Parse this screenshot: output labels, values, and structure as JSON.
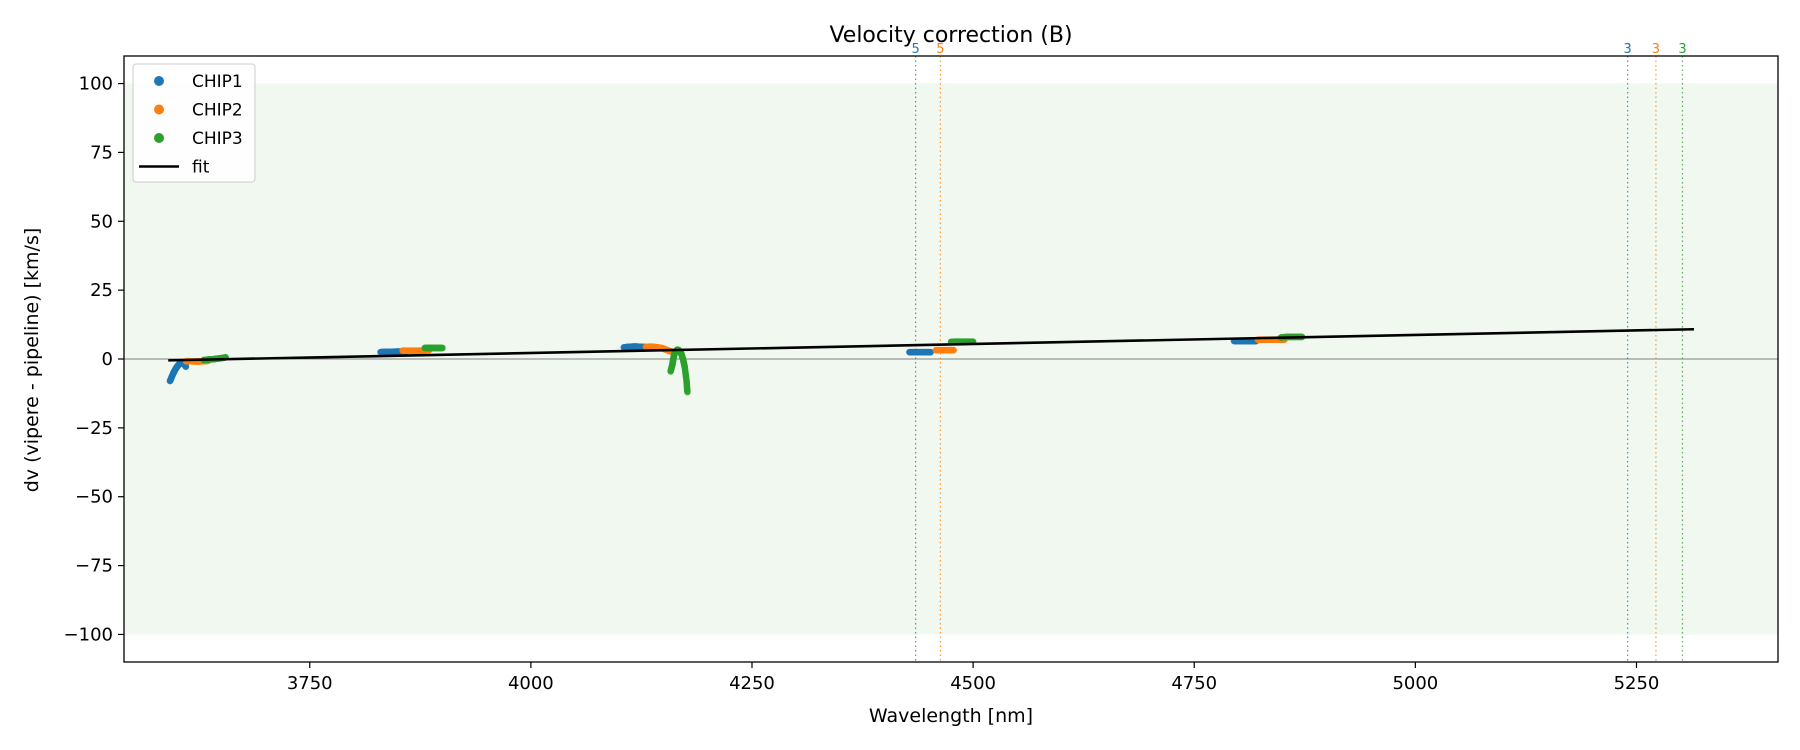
{
  "chart_data": {
    "type": "scatter",
    "title": "Velocity correction (B)",
    "xlabel": "Wavelength [nm]",
    "ylabel": "dv (vipere - pipeline) [km/s]",
    "xlim": [
      3540,
      5410
    ],
    "ylim": [
      -110,
      110
    ],
    "xticks": [
      3750,
      4000,
      4250,
      4500,
      4750,
      5000,
      5250
    ],
    "yticks": [
      100,
      75,
      50,
      25,
      0,
      -25,
      -50,
      -75,
      -100
    ],
    "ytick_labels": [
      "100",
      "75",
      "50",
      "25",
      "0",
      "−25",
      "−50",
      "−75",
      "−100"
    ],
    "shaded_band": {
      "y0": -100,
      "y1": 100,
      "color": "#2ca02c"
    },
    "zero_line": 0,
    "legend": {
      "placement": "top-left"
    },
    "colors": {
      "CHIP1": "#1f77b4",
      "CHIP2": "#ff7f0e",
      "CHIP3": "#2ca02c",
      "fit": "#000000"
    },
    "series": [
      {
        "name": "CHIP1",
        "segments": [
          {
            "x": [
              3592,
              3594,
              3596,
              3598,
              3600,
              3602,
              3604,
              3606,
              3608,
              3610
            ],
            "y": [
              -8,
              -6.5,
              -5,
              -3.8,
              -2.8,
              -2,
              -1.6,
              -1.5,
              -1.8,
              -2.8
            ]
          },
          {
            "x": [
              3830,
              3836,
              3842,
              3848,
              3854,
              3860
            ],
            "y": [
              2.5,
              2.6,
              2.6,
              2.7,
              2.7,
              2.8
            ]
          },
          {
            "x": [
              4105,
              4110,
              4115,
              4120,
              4125,
              4130
            ],
            "y": [
              4.2,
              4.4,
              4.5,
              4.5,
              4.4,
              4.3
            ]
          },
          {
            "x": [
              4428,
              4432,
              4436,
              4440,
              4444,
              4448,
              4452
            ],
            "y": [
              2.5,
              2.5,
              2.5,
              2.5,
              2.5,
              2.5,
              2.5
            ]
          },
          {
            "x": [
              4795,
              4800,
              4805,
              4810,
              4815,
              4820
            ],
            "y": [
              6.5,
              6.5,
              6.5,
              6.5,
              6.5,
              6.5
            ]
          }
        ]
      },
      {
        "name": "CHIP2",
        "segments": [
          {
            "x": [
              3610,
              3615,
              3620,
              3625,
              3630,
              3635
            ],
            "y": [
              -0.8,
              -0.8,
              -0.9,
              -0.9,
              -0.8,
              -0.7
            ]
          },
          {
            "x": [
              3855,
              3861,
              3867,
              3873,
              3879,
              3885
            ],
            "y": [
              3,
              3,
              3,
              3,
              3.1,
              3.2
            ]
          },
          {
            "x": [
              4130,
              4136,
              4142,
              4148,
              4152,
              4156,
              4160
            ],
            "y": [
              4.4,
              4.5,
              4.3,
              4.0,
              3.5,
              3.0,
              2.6
            ]
          },
          {
            "x": [
              4458,
              4462,
              4466,
              4470,
              4474,
              4478
            ],
            "y": [
              3.2,
              3.2,
              3.2,
              3.2,
              3.2,
              3.2
            ]
          },
          {
            "x": [
              4822,
              4828,
              4834,
              4840,
              4846,
              4852
            ],
            "y": [
              7,
              7,
              7,
              7,
              7,
              7
            ]
          }
        ]
      },
      {
        "name": "CHIP3",
        "segments": [
          {
            "x": [
              3630,
              3635,
              3640,
              3645,
              3650,
              3655
            ],
            "y": [
              -0.4,
              -0.2,
              -0.1,
              0.1,
              0.3,
              0.6
            ]
          },
          {
            "x": [
              3880,
              3885,
              3890,
              3895,
              3900
            ],
            "y": [
              4,
              4,
              4,
              4,
              4
            ]
          },
          {
            "x": [
              4158,
              4160,
              4161,
              4162,
              4163,
              4165,
              4166,
              4168,
              4170,
              4172,
              4174,
              4176,
              4177
            ],
            "y": [
              -4.5,
              -2,
              0,
              1.5,
              2.5,
              3.2,
              3.4,
              3,
              2,
              0,
              -3,
              -8,
              -12
            ]
          },
          {
            "x": [
              4475,
              4480,
              4485,
              4490,
              4495,
              4500
            ],
            "y": [
              6.2,
              6.3,
              6.3,
              6.3,
              6.3,
              6.3
            ]
          },
          {
            "x": [
              4848,
              4854,
              4860,
              4866,
              4872
            ],
            "y": [
              7.8,
              8,
              8,
              8,
              8
            ]
          }
        ]
      },
      {
        "name": "fit",
        "kind": "line",
        "x": [
          3590,
          5315
        ],
        "y": [
          -0.5,
          10.8
        ]
      }
    ],
    "vertical_markers": [
      {
        "x": 4435,
        "label": "5",
        "series": "CHIP1"
      },
      {
        "x": 4463,
        "label": "5",
        "series": "CHIP2"
      },
      {
        "x": 5240,
        "label": "3",
        "series": "CHIP1"
      },
      {
        "x": 5272,
        "label": "3",
        "series": "CHIP2"
      },
      {
        "x": 5302,
        "label": "3",
        "series": "CHIP3"
      }
    ]
  }
}
